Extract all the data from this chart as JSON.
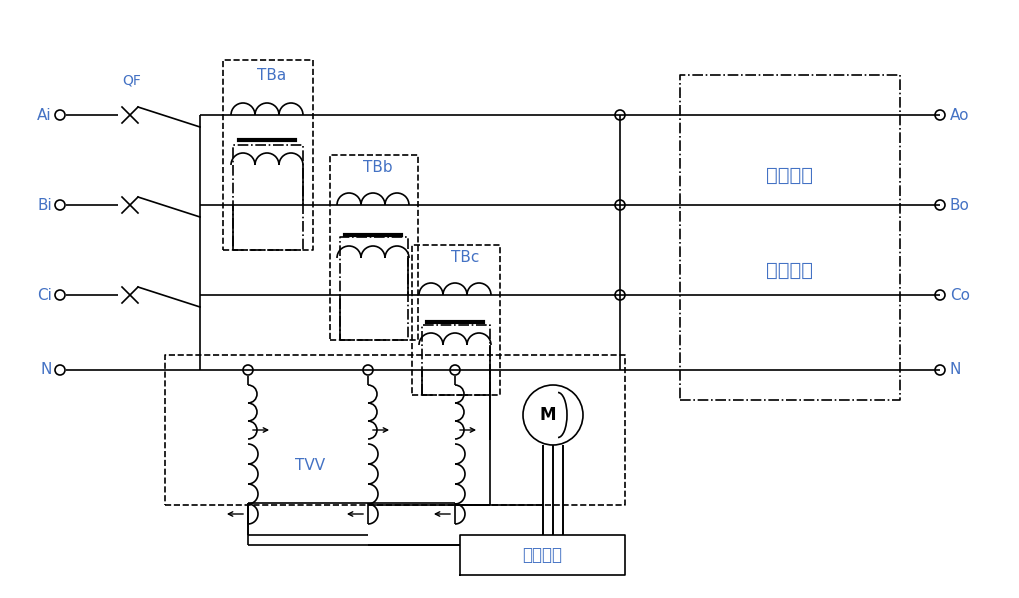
{
  "bg": "#ffffff",
  "lc": "#000000",
  "tc": "#4472c4",
  "lw": 1.2,
  "lw_core": 3.0,
  "figsize": [
    10.2,
    5.98
  ],
  "dpi": 100,
  "labels_in": [
    "Ai",
    "Bi",
    "Ci",
    "N"
  ],
  "labels_out": [
    "Ao",
    "Bo",
    "Co",
    "N"
  ],
  "label_tb": [
    "TBa",
    "TBb",
    "TBc"
  ],
  "label_qf": "QF",
  "label_tvv": "TVV",
  "label_M": "M",
  "label_delay1": "延时供电",
  "label_delay2": "保护单元",
  "label_ctrl": "控制系统"
}
